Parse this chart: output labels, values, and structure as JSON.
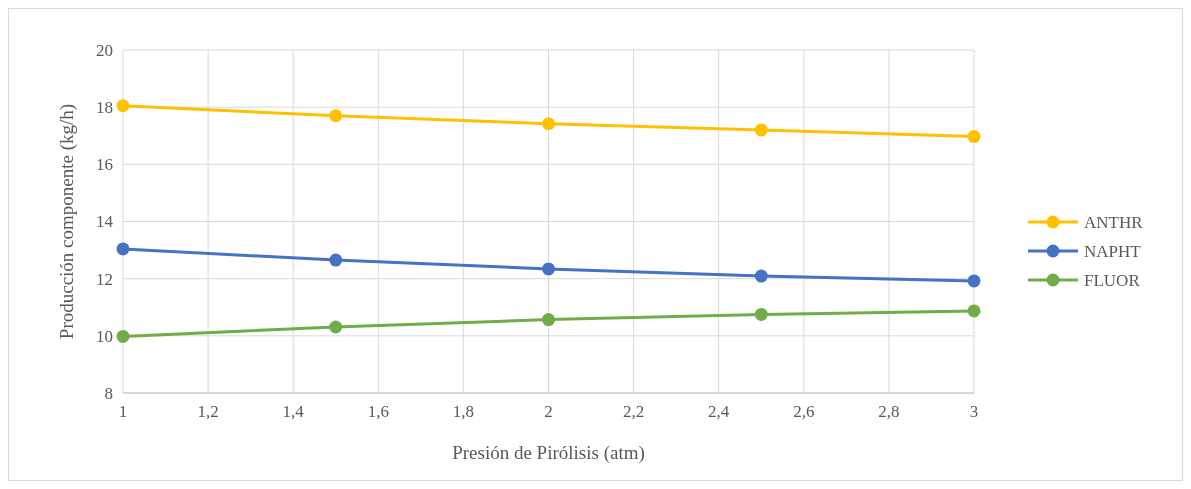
{
  "chart_data": {
    "type": "line",
    "xlabel": "Presión de Pirólisis (atm)",
    "ylabel": "Producción componente (kg/h)",
    "x": [
      1,
      1.5,
      2,
      2.5,
      3
    ],
    "series": [
      {
        "name": "ANTHR",
        "color": "#ffc000",
        "values": [
          18.05,
          17.7,
          17.42,
          17.2,
          16.97
        ]
      },
      {
        "name": "NAPHT",
        "color": "#4472c4",
        "values": [
          13.04,
          12.65,
          12.34,
          12.09,
          11.92
        ]
      },
      {
        "name": "FLUOR",
        "color": "#70ad47",
        "values": [
          9.98,
          10.31,
          10.57,
          10.75,
          10.87
        ]
      }
    ],
    "xlim": [
      1,
      3
    ],
    "xticks": [
      {
        "value": 1,
        "label": "1"
      },
      {
        "value": 1.2,
        "label": "1,2"
      },
      {
        "value": 1.4,
        "label": "1,4"
      },
      {
        "value": 1.6,
        "label": "1,6"
      },
      {
        "value": 1.8,
        "label": "1,8"
      },
      {
        "value": 2,
        "label": "2"
      },
      {
        "value": 2.2,
        "label": "2,2"
      },
      {
        "value": 2.4,
        "label": "2,4"
      },
      {
        "value": 2.6,
        "label": "2,6"
      },
      {
        "value": 2.8,
        "label": "2,8"
      },
      {
        "value": 3,
        "label": "3"
      }
    ],
    "ylim": [
      8,
      20
    ],
    "yticks": [
      8,
      10,
      12,
      14,
      16,
      18,
      20
    ],
    "grid": true,
    "legend": "right",
    "marker": "circle",
    "line_style": "solid"
  }
}
